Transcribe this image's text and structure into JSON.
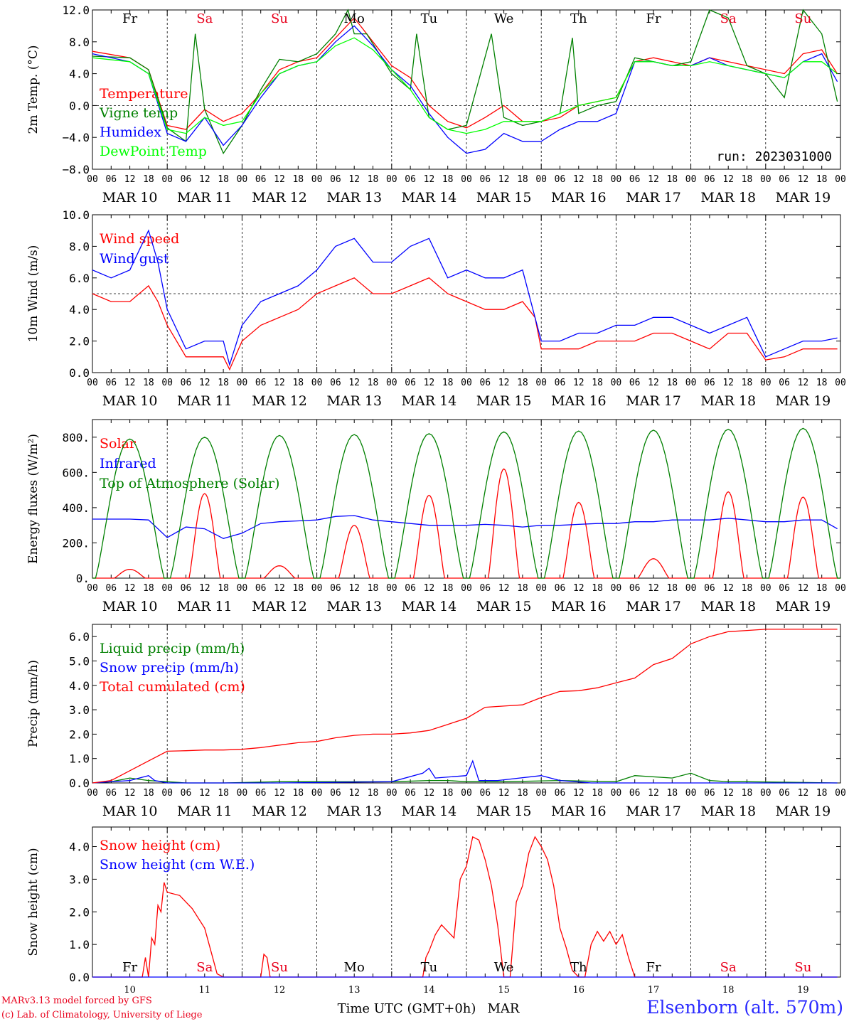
{
  "chart_data": [
    {
      "type": "line",
      "ylabel": "2m Temp. (°C)",
      "ylim": [
        -8,
        12
      ],
      "yticks": [
        "12.0",
        "8.0",
        "4.0",
        "0.0",
        "−4.0",
        "−8.0"
      ],
      "reference_line": 0,
      "day_names": [
        "Fr",
        "Sa",
        "Su",
        "Mo",
        "Tu",
        "We",
        "Th",
        "Fr",
        "Sa",
        "Su"
      ],
      "day_name_colors": [
        "#000000",
        "#e8001c",
        "#e8001c",
        "#000000",
        "#000000",
        "#000000",
        "#000000",
        "#000000",
        "#e8001c",
        "#e8001c"
      ],
      "run_label": "run: 2023031000",
      "series": [
        {
          "name": "Temperature",
          "color": "#ff0000",
          "x": [
            0,
            12,
            18,
            24,
            30,
            36,
            42,
            48,
            54,
            60,
            66,
            72,
            78,
            84,
            90,
            96,
            102,
            108,
            114,
            120,
            126,
            132,
            138,
            144,
            150,
            156,
            162,
            168,
            174,
            180,
            186,
            192,
            198,
            204,
            210,
            216,
            222,
            228,
            234,
            239
          ],
          "values": [
            6.8,
            6.0,
            4.5,
            -2.5,
            -3.0,
            -0.5,
            -2.0,
            -1.0,
            1.5,
            4.5,
            5.5,
            6.0,
            8.5,
            11.0,
            8.0,
            5.0,
            3.5,
            0.0,
            -2.0,
            -2.8,
            -1.5,
            0.0,
            -2.0,
            -2.0,
            -1.5,
            0.0,
            0.5,
            1.0,
            5.5,
            6.0,
            5.5,
            5.0,
            6.0,
            5.5,
            5.0,
            4.5,
            4.0,
            6.5,
            7.0,
            4.0
          ]
        },
        {
          "name": "Vigne temp",
          "color": "#008000",
          "x": [
            0,
            12,
            18,
            24,
            30,
            33,
            36,
            42,
            48,
            54,
            60,
            66,
            72,
            78,
            82,
            84,
            88,
            96,
            102,
            104,
            108,
            114,
            120,
            128,
            132,
            138,
            144,
            150,
            154,
            156,
            162,
            168,
            174,
            180,
            186,
            192,
            198,
            204,
            210,
            216,
            222,
            228,
            234,
            239
          ],
          "values": [
            6.2,
            6.0,
            4.5,
            -2.8,
            -4.5,
            9.0,
            -0.5,
            -6.0,
            -2.5,
            2.0,
            5.8,
            5.5,
            6.5,
            9.0,
            12.0,
            9.0,
            9.0,
            4.0,
            2.0,
            9.0,
            -1.5,
            -3.0,
            -2.5,
            9.0,
            -1.5,
            -2.5,
            -2.0,
            -1.0,
            8.5,
            -1.0,
            0.0,
            0.5,
            6.0,
            5.5,
            5.0,
            5.5,
            12.0,
            11.0,
            5.0,
            4.0,
            1.0,
            12.0,
            9.0,
            0.5
          ]
        },
        {
          "name": "Humidex",
          "color": "#0000ff",
          "x": [
            0,
            12,
            18,
            24,
            30,
            36,
            42,
            48,
            54,
            60,
            66,
            72,
            78,
            84,
            90,
            96,
            102,
            108,
            114,
            120,
            126,
            132,
            138,
            144,
            150,
            156,
            162,
            168,
            174,
            180,
            186,
            192,
            198,
            204,
            210,
            216,
            222,
            228,
            234,
            239
          ],
          "values": [
            6.5,
            5.5,
            4.0,
            -3.5,
            -4.5,
            -1.5,
            -5.0,
            -2.5,
            1.0,
            4.0,
            5.0,
            5.5,
            8.0,
            10.0,
            7.5,
            4.5,
            2.5,
            -1.0,
            -4.0,
            -6.0,
            -5.5,
            -3.5,
            -4.5,
            -4.5,
            -3.0,
            -2.0,
            -2.0,
            -1.0,
            5.5,
            5.5,
            5.0,
            5.0,
            6.0,
            5.0,
            4.5,
            4.0,
            3.5,
            5.5,
            6.5,
            3.0
          ]
        },
        {
          "name": "DewPoint Temp",
          "color": "#00ff00",
          "x": [
            0,
            12,
            18,
            24,
            30,
            36,
            42,
            48,
            54,
            60,
            66,
            72,
            78,
            84,
            90,
            96,
            102,
            108,
            114,
            120,
            126,
            132,
            138,
            144,
            150,
            156,
            162,
            168,
            174,
            180,
            186,
            192,
            198,
            204,
            210,
            216,
            222,
            228,
            234,
            239
          ],
          "values": [
            6.0,
            5.5,
            4.0,
            -3.0,
            -3.5,
            -1.5,
            -2.5,
            -2.0,
            1.5,
            4.0,
            5.0,
            5.5,
            7.5,
            8.5,
            7.0,
            4.5,
            2.0,
            -1.5,
            -3.0,
            -3.5,
            -3.0,
            -2.0,
            -2.0,
            -2.0,
            -1.0,
            0.0,
            0.5,
            1.0,
            5.5,
            5.5,
            5.0,
            5.0,
            5.5,
            5.0,
            4.5,
            4.0,
            3.5,
            5.5,
            5.5,
            4.0
          ]
        }
      ]
    },
    {
      "type": "line",
      "ylabel": "10m Wind (m/s)",
      "ylim": [
        0,
        10
      ],
      "yticks": [
        "10.0",
        "8.0",
        "6.0",
        "4.0",
        "2.0",
        "0.0"
      ],
      "reference_line": 5,
      "series": [
        {
          "name": "Wind speed",
          "color": "#ff0000",
          "x": [
            0,
            6,
            12,
            18,
            21,
            24,
            30,
            36,
            42,
            44,
            48,
            54,
            60,
            66,
            72,
            78,
            84,
            90,
            96,
            102,
            108,
            114,
            120,
            126,
            132,
            138,
            142,
            144,
            150,
            156,
            162,
            168,
            174,
            180,
            186,
            192,
            198,
            204,
            210,
            216,
            222,
            228,
            234,
            239
          ],
          "values": [
            5.0,
            4.5,
            4.5,
            5.5,
            4.5,
            3.0,
            1.0,
            1.0,
            1.0,
            0.2,
            2.0,
            3.0,
            3.5,
            4.0,
            5.0,
            5.5,
            6.0,
            5.0,
            5.0,
            5.5,
            6.0,
            5.0,
            4.5,
            4.0,
            4.0,
            4.5,
            3.5,
            1.5,
            1.5,
            1.5,
            2.0,
            2.0,
            2.0,
            2.5,
            2.5,
            2.0,
            1.5,
            2.5,
            2.5,
            0.8,
            1.0,
            1.5,
            1.5,
            1.5
          ]
        },
        {
          "name": "Wind gust",
          "color": "#0000ff",
          "x": [
            0,
            6,
            12,
            18,
            21,
            24,
            30,
            36,
            42,
            44,
            48,
            54,
            60,
            66,
            72,
            78,
            84,
            90,
            96,
            102,
            108,
            114,
            120,
            126,
            132,
            138,
            142,
            144,
            150,
            156,
            162,
            168,
            174,
            180,
            186,
            192,
            198,
            204,
            210,
            216,
            222,
            228,
            234,
            239
          ],
          "values": [
            6.5,
            6.0,
            6.5,
            9.0,
            7.0,
            4.0,
            1.5,
            2.0,
            2.0,
            0.5,
            3.0,
            4.5,
            5.0,
            5.5,
            6.5,
            8.0,
            8.5,
            7.0,
            7.0,
            8.0,
            8.5,
            6.0,
            6.5,
            6.0,
            6.0,
            6.5,
            3.5,
            2.0,
            2.0,
            2.5,
            2.5,
            3.0,
            3.0,
            3.5,
            3.5,
            3.0,
            2.5,
            3.0,
            3.5,
            1.0,
            1.5,
            2.0,
            2.0,
            2.2
          ]
        }
      ]
    },
    {
      "type": "line",
      "ylabel": "Energy fluxes (W/m²)",
      "ylim": [
        0,
        900
      ],
      "yticks": [
        "800.",
        "600.",
        "400.",
        "200.",
        "0."
      ],
      "series": [
        {
          "name": "Solar",
          "color": "#ff0000",
          "peaks": [
            50,
            480,
            70,
            300,
            470,
            620,
            430,
            110,
            490,
            460
          ],
          "peak_width_h": 5
        },
        {
          "name": "Infrared",
          "color": "#0000ff",
          "x": [
            0,
            12,
            18,
            24,
            30,
            36,
            42,
            48,
            54,
            60,
            66,
            72,
            78,
            84,
            90,
            96,
            102,
            108,
            114,
            120,
            126,
            132,
            138,
            144,
            150,
            156,
            162,
            168,
            174,
            180,
            186,
            192,
            198,
            204,
            210,
            216,
            222,
            228,
            234,
            239
          ],
          "values": [
            335,
            335,
            330,
            230,
            290,
            280,
            225,
            255,
            310,
            320,
            325,
            330,
            350,
            355,
            330,
            320,
            310,
            300,
            300,
            300,
            305,
            300,
            290,
            300,
            300,
            305,
            310,
            310,
            320,
            320,
            330,
            330,
            330,
            340,
            330,
            320,
            320,
            330,
            330,
            280
          ]
        },
        {
          "name": "Top of Atmosphere (Solar)",
          "color": "#008000",
          "peaks": [
            790,
            800,
            810,
            815,
            820,
            830,
            835,
            840,
            845,
            850
          ],
          "peak_width_h": 11
        }
      ]
    },
    {
      "type": "line",
      "ylabel": "Precip (mm/h)",
      "ylim": [
        0,
        6.5
      ],
      "yticks": [
        "6.0",
        "5.0",
        "4.0",
        "3.0",
        "2.0",
        "1.0",
        "0.0"
      ],
      "series": [
        {
          "name": "Liquid precip (mm/h)",
          "color": "#008000",
          "x": [
            0,
            6,
            12,
            18,
            24,
            30,
            42,
            60,
            84,
            96,
            108,
            114,
            120,
            132,
            150,
            168,
            174,
            186,
            192,
            198,
            204,
            210,
            239
          ],
          "values": [
            0,
            0.05,
            0.2,
            0.1,
            0.05,
            0,
            0,
            0.05,
            0.05,
            0.05,
            0.1,
            0.1,
            0.05,
            0.05,
            0.1,
            0.05,
            0.3,
            0.2,
            0.4,
            0.1,
            0.05,
            0.05,
            0
          ]
        },
        {
          "name": "Snow precip (mm/h)",
          "color": "#0000ff",
          "x": [
            0,
            12,
            18,
            20,
            24,
            30,
            60,
            96,
            106,
            108,
            110,
            120,
            122,
            124,
            130,
            144,
            150,
            160,
            168,
            239
          ],
          "values": [
            0,
            0.1,
            0.3,
            0.1,
            0,
            0,
            0,
            0.05,
            0.4,
            0.6,
            0.2,
            0.3,
            0.9,
            0.1,
            0.1,
            0.3,
            0.1,
            0,
            0,
            0
          ]
        },
        {
          "name": "Total cumulated (cm)",
          "color": "#ff0000",
          "x": [
            0,
            6,
            12,
            18,
            24,
            30,
            36,
            42,
            48,
            54,
            60,
            66,
            72,
            78,
            84,
            90,
            96,
            102,
            108,
            114,
            120,
            126,
            132,
            138,
            144,
            150,
            156,
            162,
            168,
            174,
            180,
            186,
            192,
            198,
            204,
            210,
            216,
            222,
            228,
            234,
            239
          ],
          "values": [
            0,
            0.1,
            0.5,
            0.9,
            1.3,
            1.32,
            1.35,
            1.35,
            1.38,
            1.45,
            1.55,
            1.65,
            1.7,
            1.85,
            1.95,
            2.0,
            2.0,
            2.05,
            2.15,
            2.4,
            2.65,
            3.1,
            3.15,
            3.2,
            3.5,
            3.75,
            3.78,
            3.9,
            4.1,
            4.3,
            4.85,
            5.1,
            5.7,
            6.0,
            6.2,
            6.25,
            6.3,
            6.3,
            6.3,
            6.3,
            6.3
          ]
        }
      ]
    },
    {
      "type": "line",
      "ylabel": "Snow height (cm)",
      "ylim": [
        0,
        4.6
      ],
      "yticks": [
        "4.0",
        "3.0",
        "2.0",
        "1.0",
        "0.0"
      ],
      "day_names": [
        "Fr",
        "Sa",
        "Su",
        "Mo",
        "Tu",
        "We",
        "Th",
        "Fr",
        "Sa",
        "Su"
      ],
      "day_numbers": [
        "10",
        "11",
        "12",
        "13",
        "14",
        "15",
        "16",
        "17",
        "18",
        "19"
      ],
      "xlabel": "Time UTC (GMT+0h)",
      "month_label": "MAR",
      "series": [
        {
          "name": "Snow height (cm)",
          "color": "#ff0000",
          "x": [
            0,
            16,
            17,
            18,
            19,
            20,
            21,
            22,
            23,
            24,
            28,
            32,
            36,
            38,
            40,
            42,
            44,
            54,
            55,
            56,
            57,
            106,
            107,
            108,
            110,
            112,
            114,
            116,
            118,
            120,
            122,
            124,
            126,
            128,
            130,
            132,
            134,
            136,
            138,
            140,
            142,
            144,
            146,
            148,
            150,
            152,
            154,
            156,
            158,
            160,
            162,
            164,
            166,
            168,
            170,
            172,
            174,
            239
          ],
          "values": [
            0,
            0,
            0.6,
            0,
            1.2,
            1.0,
            2.2,
            2.0,
            2.9,
            2.6,
            2.5,
            2.1,
            1.5,
            0.8,
            0.1,
            0,
            0,
            0,
            0.7,
            0.6,
            0,
            0,
            0.6,
            0.8,
            1.3,
            1.6,
            1.4,
            1.2,
            3.0,
            3.4,
            4.3,
            4.2,
            3.6,
            2.8,
            1.6,
            0,
            0,
            2.3,
            2.8,
            3.8,
            4.3,
            4.0,
            3.6,
            2.8,
            1.5,
            0.9,
            0.2,
            0,
            0,
            1.0,
            1.4,
            1.1,
            1.4,
            1.0,
            1.3,
            0.6,
            0,
            0
          ]
        },
        {
          "name": "Snow height (cm W.E.)",
          "color": "#0000ff",
          "x": [
            0,
            239
          ],
          "values": [
            0,
            0
          ]
        }
      ]
    }
  ],
  "time_axis": {
    "hour_ticks": [
      "00",
      "06",
      "12",
      "18"
    ],
    "final_tick": "00",
    "day_labels": [
      "MAR 10",
      "MAR 11",
      "MAR 12",
      "MAR 13",
      "MAR 14",
      "MAR 15",
      "MAR 16",
      "MAR 17",
      "MAR 18",
      "MAR 19"
    ]
  },
  "footer": {
    "credit_line1": "MARv3.13 model forced by GFS",
    "credit_line2": "(c) Lab. of Climatology, University of Liege",
    "station": "Elsenborn (alt. 570m)"
  }
}
